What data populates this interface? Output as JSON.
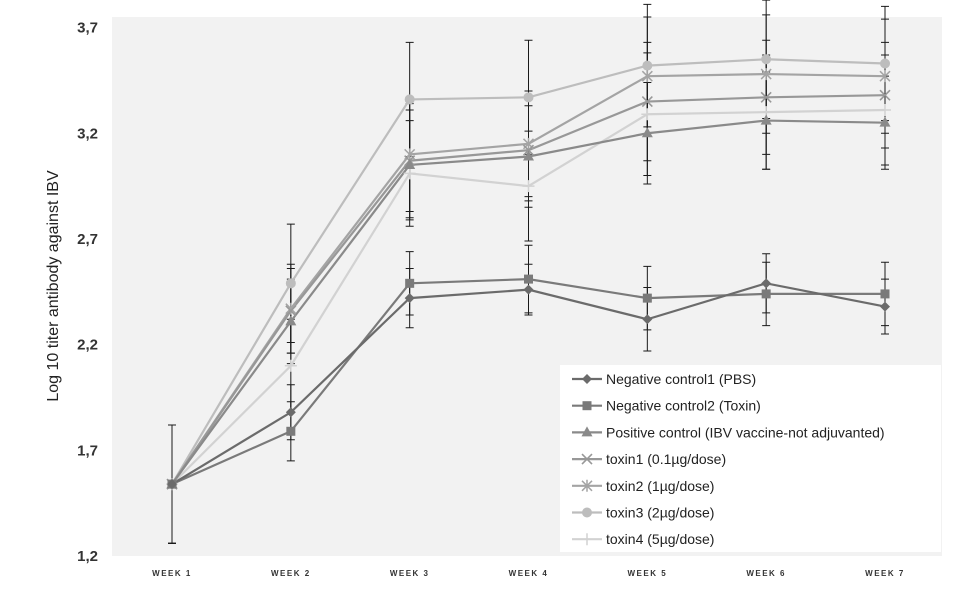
{
  "chart_data": {
    "type": "line",
    "title": "",
    "xlabel": "",
    "ylabel": "Log 10 titer antibody against IBV",
    "categories": [
      "WEEK 1",
      "WEEK 2",
      "WEEK 3",
      "WEEK 4",
      "WEEK 5",
      "WEEK 6",
      "WEEK 7"
    ],
    "ylim": [
      1.2,
      3.75
    ],
    "yticks": [
      1.2,
      1.7,
      2.2,
      2.7,
      3.2,
      3.7
    ],
    "ytick_labels": [
      "1,2",
      "1,7",
      "2,2",
      "2,7",
      "3,2",
      "3,7"
    ],
    "grid": false,
    "legend_position": "bottom-right",
    "series": [
      {
        "name": "Negative control1 (PBS)",
        "marker": "diamond",
        "color": "#6b6b6b",
        "values": [
          1.54,
          1.88,
          2.42,
          2.46,
          2.32,
          2.49,
          2.38
        ],
        "errors": [
          0.28,
          0.13,
          0.14,
          0.12,
          0.15,
          0.14,
          0.13
        ]
      },
      {
        "name": "Negative control2 (Toxin)",
        "marker": "square",
        "color": "#7a7a7a",
        "values": [
          1.54,
          1.79,
          2.49,
          2.51,
          2.42,
          2.44,
          2.44
        ],
        "errors": [
          0.28,
          0.14,
          0.15,
          0.16,
          0.15,
          0.15,
          0.15
        ]
      },
      {
        "name": "Positive control (IBV vaccine-not adjuvanted)",
        "marker": "triangle",
        "color": "#8a8a8a",
        "values": [
          1.54,
          2.31,
          3.05,
          3.09,
          3.2,
          3.26,
          3.25
        ],
        "errors": [
          0.28,
          0.2,
          0.26,
          0.24,
          0.24,
          0.23,
          0.22
        ]
      },
      {
        "name": "toxin1 (0.1µg/dose)",
        "marker": "x",
        "color": "#989898",
        "values": [
          1.54,
          2.36,
          3.07,
          3.12,
          3.35,
          3.37,
          3.38
        ],
        "errors": [
          0.28,
          0.2,
          0.27,
          0.24,
          0.28,
          0.27,
          0.25
        ]
      },
      {
        "name": "toxin2 (1µg/dose)",
        "marker": "asterisk",
        "color": "#a4a4a4",
        "values": [
          1.54,
          2.37,
          3.1,
          3.15,
          3.47,
          3.48,
          3.47
        ],
        "errors": [
          0.28,
          0.21,
          0.27,
          0.25,
          0.28,
          0.28,
          0.27
        ]
      },
      {
        "name": "toxin3 (2µg/dose)",
        "marker": "circle",
        "color": "#bdbdbd",
        "values": [
          1.54,
          2.49,
          3.36,
          3.37,
          3.52,
          3.55,
          3.53
        ],
        "errors": [
          0.28,
          0.28,
          0.27,
          0.27,
          0.29,
          0.28,
          0.27
        ]
      },
      {
        "name": "toxin4 (5µg/dose)",
        "marker": "plus",
        "color": "#d2d2d2",
        "values": [
          1.54,
          2.1,
          3.01,
          2.95,
          3.29,
          3.3,
          3.31
        ],
        "errors": [
          0.28,
          0.22,
          0.25,
          0.26,
          0.29,
          0.27,
          0.26
        ]
      }
    ]
  }
}
